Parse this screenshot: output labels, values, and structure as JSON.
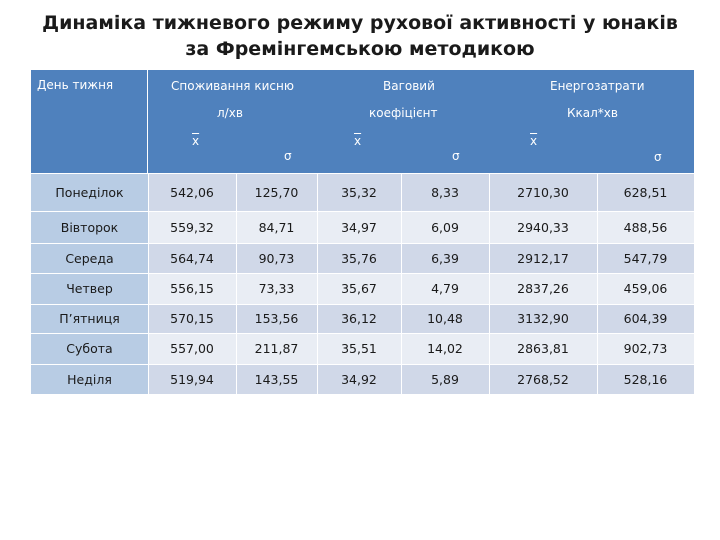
{
  "title": {
    "line1": "Динаміка тижневого режиму рухової активності у юнаків",
    "line2": "за Фремінгемською методикою"
  },
  "table": {
    "header": {
      "day": "День тижня",
      "oxygen_line1": "Споживання кисню",
      "oxygen_line2": "л/хв",
      "weight_line1": "Ваговий",
      "weight_line2": "коефіцієнт",
      "energy_line1": "Енергозатрати",
      "energy_line2": "Ккал*хв",
      "mean": "x",
      "sigma": "σ"
    },
    "rows": [
      {
        "day": "Понеділок",
        "v1": "542,06",
        "s1": "125,70",
        "v2": "35,32",
        "s2": "8,33",
        "v3": "2710,30",
        "s3": "628,51"
      },
      {
        "day": "Вівторок",
        "v1": "559,32",
        "s1": "84,71",
        "v2": "34,97",
        "s2": "6,09",
        "v3": "2940,33",
        "s3": "488,56"
      },
      {
        "day": "Середа",
        "v1": "564,74",
        "s1": "90,73",
        "v2": "35,76",
        "s2": "6,39",
        "v3": "2912,17",
        "s3": "547,79"
      },
      {
        "day": "Четвер",
        "v1": "556,15",
        "s1": "73,33",
        "v2": "35,67",
        "s2": "4,79",
        "v3": "2837,26",
        "s3": "459,06"
      },
      {
        "day": "П’ятниця",
        "v1": "570,15",
        "s1": "153,56",
        "v2": "36,12",
        "s2": "10,48",
        "v3": "3132,90",
        "s3": "604,39"
      },
      {
        "day": "Субота",
        "v1": "557,00",
        "s1": "211,87",
        "v2": "35,51",
        "s2": "14,02",
        "v3": "2863,81",
        "s3": "902,73"
      },
      {
        "day": "Неділя",
        "v1": "519,94",
        "s1": "143,55",
        "v2": "34,92",
        "s2": "5,89",
        "v3": "2768,52",
        "s3": "528,16"
      }
    ]
  },
  "colors": {
    "header": "#4f81bd",
    "day_column": "#b8cce4",
    "row_dark": "#d0d8e8",
    "row_light": "#e9edf4"
  }
}
